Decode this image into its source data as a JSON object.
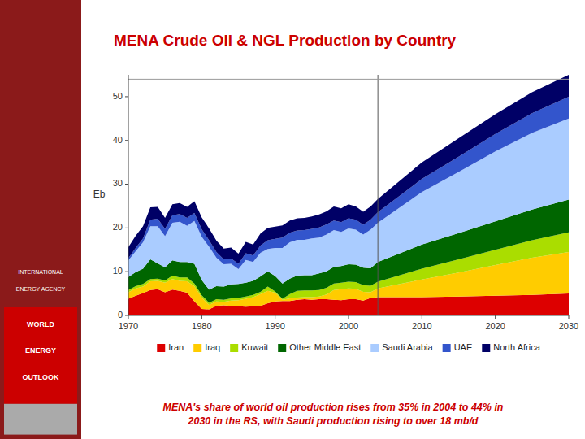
{
  "chart_data": {
    "type": "area",
    "stacked": true,
    "title": "MENA Crude Oil & NGL Production by Country",
    "subtitle": "MENA's share of world oil production rises from 35% in 2004 to 44% in\n2030 in the RS, with Saudi production rising to over 18 mb/d",
    "y_label": "Eb",
    "annotations": [
      "INTERNATIONAL",
      "ENERGY AGENCY",
      "WORLD",
      "ENERGY",
      "OUTLOOK"
    ],
    "x": [
      1970,
      1971,
      1972,
      1973,
      1974,
      1975,
      1976,
      1977,
      1978,
      1979,
      1980,
      1981,
      1982,
      1983,
      1984,
      1985,
      1986,
      1987,
      1988,
      1989,
      1990,
      1991,
      1992,
      1993,
      1994,
      1995,
      1996,
      1997,
      1998,
      1999,
      2000,
      2001,
      2002,
      2003,
      2004,
      2010,
      2015,
      2020,
      2025,
      2030
    ],
    "series": [
      {
        "name": "Iran",
        "color": "#dd0000",
        "values": [
          3.8,
          4.5,
          5.1,
          5.8,
          6.0,
          5.3,
          5.9,
          5.6,
          5.2,
          3.2,
          1.5,
          1.4,
          2.2,
          2.3,
          2.2,
          2.1,
          2.0,
          2.1,
          2.2,
          2.8,
          3.2,
          3.3,
          3.3,
          3.6,
          3.7,
          3.6,
          3.7,
          3.7,
          3.6,
          3.5,
          3.7,
          3.7,
          3.4,
          4.0,
          4.2,
          4.2,
          4.3,
          4.5,
          4.7,
          5.0
        ]
      },
      {
        "name": "Iraq",
        "color": "#ffcc00",
        "values": [
          1.5,
          1.7,
          1.5,
          2.0,
          1.9,
          2.2,
          2.4,
          2.3,
          2.6,
          3.5,
          2.6,
          1.0,
          1.0,
          0.8,
          1.2,
          1.4,
          1.8,
          2.1,
          2.7,
          2.8,
          2.0,
          0.3,
          0.6,
          0.5,
          0.5,
          0.6,
          0.6,
          1.1,
          2.2,
          2.5,
          2.5,
          2.4,
          2.0,
          1.3,
          2.0,
          4.0,
          5.5,
          7.0,
          8.5,
          9.5
        ]
      },
      {
        "name": "Kuwait",
        "color": "#aadd00",
        "values": [
          0.5,
          0.5,
          0.6,
          0.5,
          0.5,
          0.5,
          0.8,
          0.8,
          0.9,
          0.6,
          0.5,
          0.5,
          0.5,
          0.5,
          0.5,
          0.5,
          0.5,
          0.5,
          0.5,
          1.0,
          0.3,
          0.2,
          1.0,
          1.5,
          1.5,
          1.5,
          1.5,
          1.5,
          1.5,
          1.5,
          1.5,
          1.5,
          1.5,
          1.5,
          1.5,
          2.5,
          3.0,
          3.5,
          4.0,
          4.5
        ]
      },
      {
        "name": "Other Middle East",
        "color": "#006600",
        "values": [
          3.0,
          3.2,
          3.5,
          4.5,
          3.5,
          3.0,
          3.5,
          3.5,
          3.5,
          4.5,
          3.5,
          3.0,
          3.0,
          3.0,
          3.2,
          3.2,
          3.2,
          3.2,
          3.5,
          3.5,
          3.5,
          3.5,
          3.5,
          3.5,
          3.5,
          3.5,
          3.8,
          3.8,
          3.8,
          3.8,
          4.0,
          4.0,
          4.0,
          4.0,
          4.5,
          5.5,
          6.0,
          6.5,
          7.0,
          7.5
        ]
      },
      {
        "name": "Saudi Arabia",
        "color": "#aaccff",
        "values": [
          3.8,
          4.8,
          6.0,
          7.6,
          8.5,
          7.1,
          8.6,
          9.2,
          8.3,
          9.8,
          9.9,
          9.8,
          6.5,
          5.1,
          4.7,
          3.4,
          5.2,
          4.3,
          5.4,
          5.1,
          6.4,
          8.1,
          8.3,
          8.2,
          8.1,
          8.4,
          8.2,
          8.4,
          8.4,
          7.8,
          8.2,
          8.0,
          7.6,
          8.8,
          9.0,
          12.0,
          14.0,
          16.0,
          17.5,
          18.5
        ]
      },
      {
        "name": "UAE",
        "color": "#3355cc",
        "values": [
          0.5,
          0.7,
          0.9,
          1.5,
          1.7,
          1.7,
          1.7,
          1.8,
          1.8,
          1.8,
          1.7,
          1.5,
          1.3,
          1.1,
          1.2,
          1.2,
          1.5,
          1.5,
          1.7,
          2.0,
          2.1,
          2.4,
          2.2,
          2.1,
          2.2,
          2.2,
          2.3,
          2.3,
          2.2,
          2.2,
          2.3,
          2.3,
          2.2,
          2.3,
          2.4,
          3.0,
          3.5,
          4.0,
          4.5,
          5.0
        ]
      },
      {
        "name": "North Africa",
        "color": "#000066",
        "values": [
          2.5,
          2.8,
          2.8,
          2.8,
          2.7,
          2.5,
          2.5,
          2.5,
          2.5,
          2.7,
          2.7,
          2.7,
          2.6,
          2.5,
          2.5,
          2.3,
          2.6,
          2.5,
          2.7,
          2.8,
          2.8,
          2.8,
          2.8,
          2.8,
          2.8,
          2.8,
          3.0,
          3.0,
          3.2,
          3.2,
          3.2,
          3.0,
          3.0,
          3.0,
          3.0,
          3.8,
          4.2,
          4.5,
          4.8,
          5.0
        ]
      }
    ],
    "reference_lines": [
      {
        "axis": "x",
        "value": 2004
      },
      {
        "axis": "y",
        "value": 54
      }
    ],
    "xlim": [
      1970,
      2030
    ],
    "xticks": [
      1970,
      1980,
      1990,
      2000,
      2010,
      2020,
      2030
    ],
    "ylim": [
      0,
      55
    ],
    "yticks": [
      0,
      10,
      20,
      30,
      40,
      50
    ],
    "grid": false,
    "legend": "bottom"
  }
}
